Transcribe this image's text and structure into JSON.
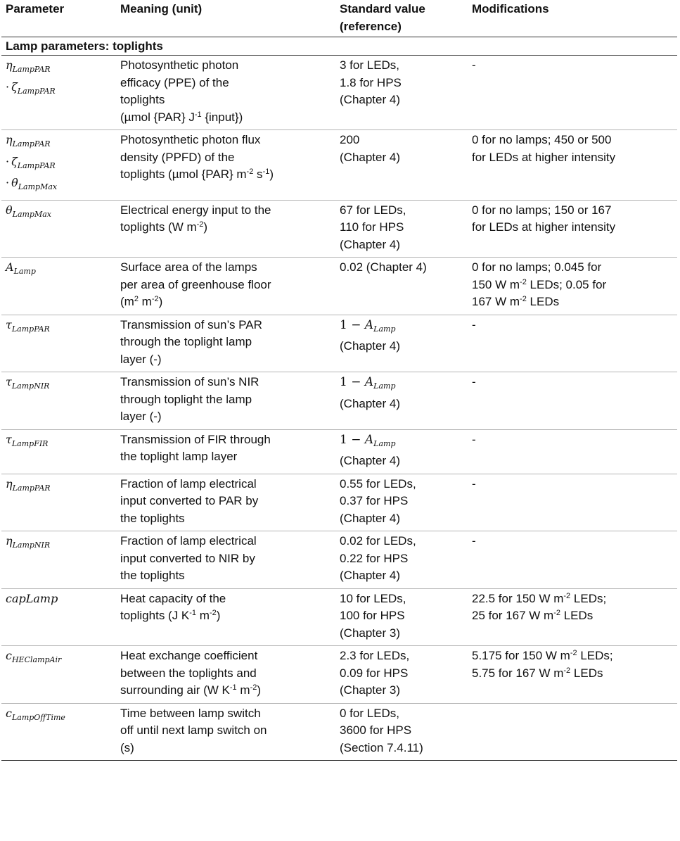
{
  "table": {
    "title": "Lamp parameters: toplights",
    "headers": {
      "parameter": "Parameter",
      "meaning": "Meaning (unit)",
      "standard_line1": "Standard value",
      "standard_line2": "(reference)",
      "modifications": "Modifications"
    },
    "rows": [
      {
        "symbol_lines": [
          {
            "prefix": "",
            "base": "η",
            "sub": "LampPAR"
          },
          {
            "prefix": "·",
            "base": "ζ",
            "sub": "LampPAR"
          }
        ],
        "meaning_lines": [
          "Photosynthetic photon",
          "efficacy (PPE) of the",
          "toplights",
          "(µmol {PAR} J-1 {input})"
        ],
        "standard_lines": [
          "3 for LEDs,",
          "1.8 for HPS",
          "(Chapter 4)"
        ],
        "modification_lines": [
          "-"
        ]
      },
      {
        "symbol_lines": [
          {
            "prefix": "",
            "base": "η",
            "sub": "LampPAR"
          },
          {
            "prefix": "·",
            "base": "ζ",
            "sub": "LampPAR"
          },
          {
            "prefix": "·",
            "base": "θ",
            "sub": "LampMax"
          }
        ],
        "meaning_lines": [
          "Photosynthetic photon flux",
          "density (PPFD) of the",
          "toplights (µmol {PAR} m-2 s-1)"
        ],
        "standard_lines": [
          "200",
          "(Chapter 4)"
        ],
        "modification_lines": [
          "0 for no lamps;  450 or 500",
          "for LEDs at higher intensity"
        ]
      },
      {
        "symbol_lines": [
          {
            "prefix": "",
            "base": "θ",
            "sub": "LampMax"
          }
        ],
        "meaning_lines": [
          "Electrical energy input to the",
          "toplights (W m-2)"
        ],
        "standard_lines": [
          "67 for LEDs,",
          "110 for HPS",
          "(Chapter 4)"
        ],
        "modification_lines": [
          "0 for no lamps;  150 or 167",
          "for LEDs at higher intensity"
        ]
      },
      {
        "symbol_lines": [
          {
            "prefix": "",
            "base": "A",
            "sub": "Lamp"
          }
        ],
        "meaning_lines": [
          "Surface area of the lamps",
          "per area of greenhouse floor",
          "(m2 m-2)"
        ],
        "standard_lines": [
          "0.02 (Chapter 4)"
        ],
        "modification_lines": [
          "0 for no lamps;  0.045 for",
          "150 W m-2 LEDs; 0.05 for",
          "167 W m-2 LEDs"
        ]
      },
      {
        "symbol_lines": [
          {
            "prefix": "",
            "base": "τ",
            "sub": "LampPAR"
          }
        ],
        "meaning_lines": [
          "Transmission of sun’s PAR",
          "through the toplight lamp",
          "layer (-)"
        ],
        "standard_math": {
          "text": "1 − ",
          "base": "A",
          "sub": "Lamp"
        },
        "standard_lines": [
          "(Chapter 4)"
        ],
        "modification_lines": [
          "-"
        ]
      },
      {
        "symbol_lines": [
          {
            "prefix": "",
            "base": "τ",
            "sub": "LampNIR"
          }
        ],
        "meaning_lines": [
          "Transmission of sun’s NIR",
          "through toplight the lamp",
          "layer (-)"
        ],
        "standard_math": {
          "text": "1 − ",
          "base": "A",
          "sub": "Lamp"
        },
        "standard_lines": [
          "(Chapter 4)"
        ],
        "modification_lines": [
          "-"
        ]
      },
      {
        "symbol_lines": [
          {
            "prefix": "",
            "base": "τ",
            "sub": "LampFIR"
          }
        ],
        "meaning_lines": [
          "Transmission of FIR through",
          "the toplight lamp layer"
        ],
        "standard_math": {
          "text": "1 − ",
          "base": "A",
          "sub": "Lamp"
        },
        "standard_lines": [
          "(Chapter 4)"
        ],
        "modification_lines": [
          "-"
        ]
      },
      {
        "symbol_lines": [
          {
            "prefix": "",
            "base": "η",
            "sub": "LampPAR"
          }
        ],
        "meaning_lines": [
          "Fraction of lamp electrical",
          "input converted to PAR by",
          "the toplights"
        ],
        "standard_lines": [
          "0.55 for LEDs,",
          "0.37 for HPS",
          "(Chapter 4)"
        ],
        "modification_lines": [
          "-"
        ]
      },
      {
        "symbol_lines": [
          {
            "prefix": "",
            "base": "η",
            "sub": "LampNIR"
          }
        ],
        "meaning_lines": [
          "Fraction of lamp electrical",
          "input converted to NIR by",
          "the toplights"
        ],
        "standard_lines": [
          "0.02 for LEDs,",
          "0.22 for HPS",
          "(Chapter 4)"
        ],
        "modification_lines": [
          "-"
        ]
      },
      {
        "symbol_lines": [
          {
            "prefix": "",
            "base": "capLamp",
            "sub": ""
          }
        ],
        "meaning_lines": [
          "Heat capacity of the",
          "toplights (J K-1 m-2)"
        ],
        "standard_lines": [
          "10 for LEDs,",
          "100 for HPS",
          "(Chapter 3)"
        ],
        "modification_lines": [
          "22.5 for 150 W m-2 LEDs;",
          "25 for 167 W m-2 LEDs"
        ]
      },
      {
        "symbol_lines": [
          {
            "prefix": "",
            "base": "c",
            "sub": "HEClampAir"
          }
        ],
        "meaning_lines": [
          "Heat exchange coefficient",
          "between the toplights and",
          "surrounding air (W K-1 m-2)"
        ],
        "standard_lines": [
          "2.3 for LEDs,",
          "0.09 for HPS",
          "(Chapter 3)"
        ],
        "modification_lines": [
          "5.175 for 150 W m-2 LEDs;",
          "5.75 for 167 W m-2 LEDs"
        ]
      },
      {
        "symbol_lines": [
          {
            "prefix": "",
            "base": "c",
            "sub": "LampOffTime"
          }
        ],
        "meaning_lines": [
          "Time between lamp switch",
          "off until next lamp switch on",
          "(s)"
        ],
        "standard_lines": [
          "0 for LEDs,",
          "3600 for HPS",
          "(Section 7.4.11)"
        ],
        "modification_lines": []
      }
    ]
  }
}
